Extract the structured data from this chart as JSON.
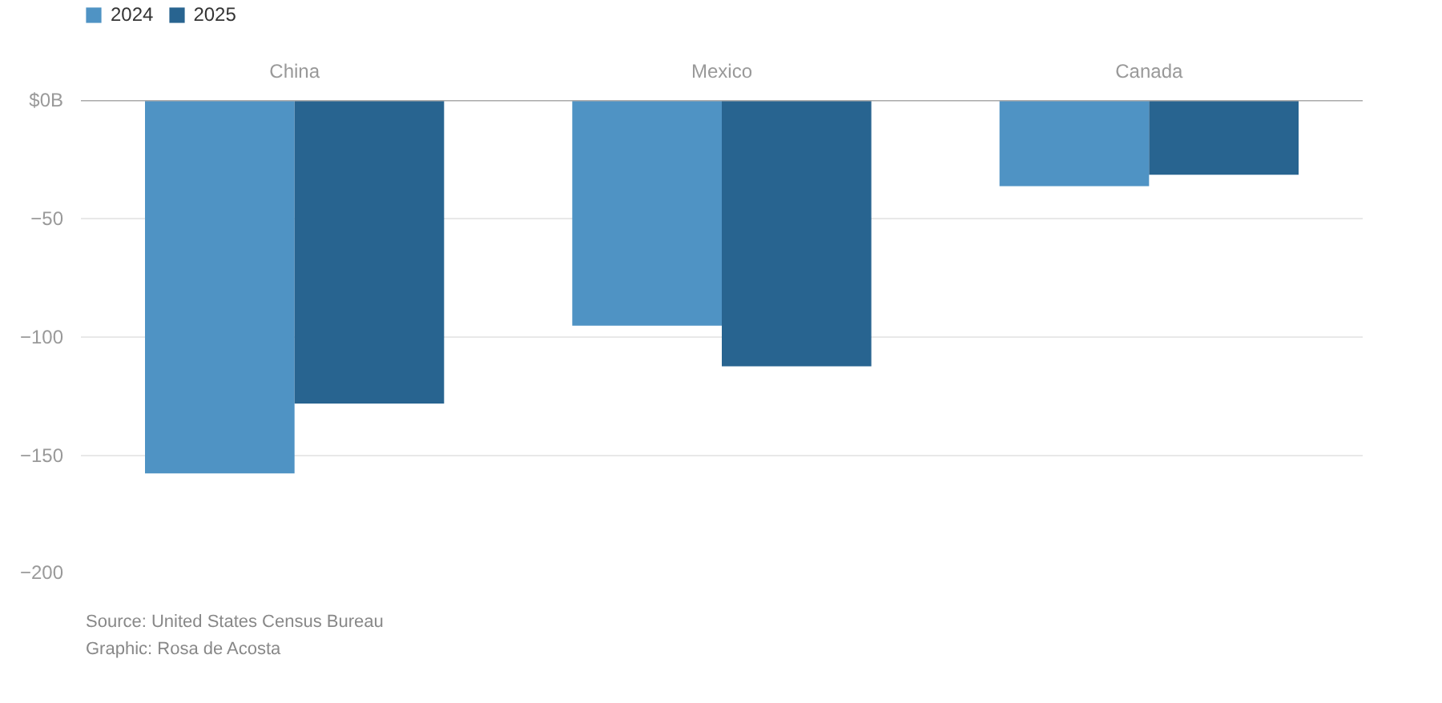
{
  "chart_data": {
    "type": "bar",
    "categories": [
      "China",
      "Mexico",
      "Canada"
    ],
    "series": [
      {
        "name": "2024",
        "color": "#4f93c4",
        "values": [
          -157.5,
          -95.2,
          -36.3
        ]
      },
      {
        "name": "2025",
        "color": "#286490",
        "values": [
          -128,
          -112.3,
          -31.5
        ]
      }
    ],
    "ylim": [
      -200,
      0
    ],
    "yticks": [
      {
        "value": 0,
        "label": "$0B"
      },
      {
        "value": -50,
        "label": "−50"
      },
      {
        "value": -100,
        "label": "−100"
      },
      {
        "value": -150,
        "label": "−150"
      },
      {
        "value": -200,
        "label": "−200"
      }
    ],
    "grid": "y",
    "legend": "top left",
    "annotations": [
      "Source: United States Census Bureau",
      "Graphic: Rosa de Acosta"
    ]
  }
}
